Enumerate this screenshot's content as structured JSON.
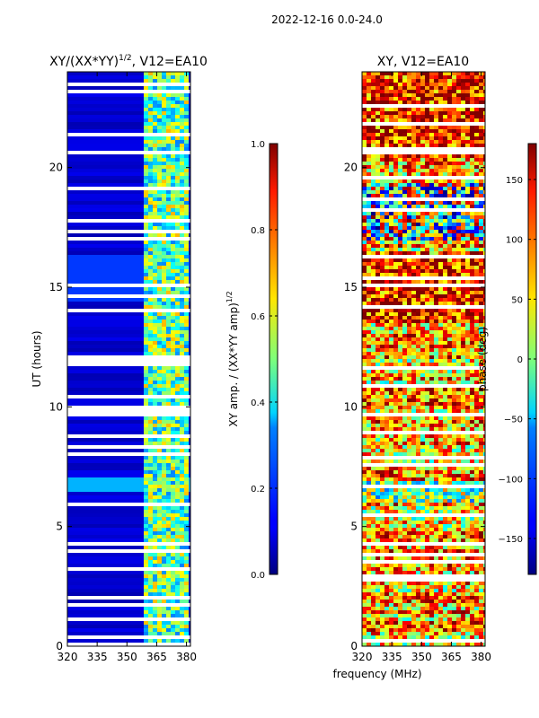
{
  "figure": {
    "suptitle": "2022-12-16 0.0-24.0"
  },
  "chart_data": [
    {
      "type": "heatmap",
      "title_prefix": "XY/(XX*YY)",
      "title_sup": "1/2",
      "title_suffix": ", V12=EA10",
      "xlabel": "",
      "ylabel": "UT (hours)",
      "xlim": [
        320,
        382
      ],
      "ylim": [
        0,
        24
      ],
      "xticks": [
        320,
        335,
        350,
        365,
        380
      ],
      "yticks": [
        0,
        5,
        10,
        15,
        20
      ],
      "colorbar": {
        "label_main": "XY amp. / (XX*YY amp)",
        "label_sup": "1/2",
        "range": [
          0.0,
          1.0
        ],
        "ticks": [
          "0.0",
          "0.2",
          "0.4",
          "0.6",
          "0.8",
          "1.0"
        ],
        "tick_values": [
          0.0,
          0.2,
          0.4,
          0.6,
          0.8,
          1.0
        ],
        "colormap": "jet"
      }
    },
    {
      "type": "heatmap",
      "title": "XY, V12=EA10",
      "xlabel": "frequency (MHz)",
      "ylabel": "",
      "xlim": [
        320,
        382
      ],
      "ylim": [
        0,
        24
      ],
      "xticks": [
        320,
        335,
        350,
        365,
        380
      ],
      "yticks": [
        0,
        5,
        10,
        15,
        20
      ],
      "colorbar": {
        "label": "phase (deg)",
        "range": [
          -180,
          180
        ],
        "ticks": [
          "150",
          "100",
          "50",
          "0",
          "−50",
          "−100",
          "−150"
        ],
        "tick_values": [
          150,
          100,
          50,
          0,
          -50,
          -100,
          -150
        ],
        "colormap": "jet"
      }
    }
  ]
}
